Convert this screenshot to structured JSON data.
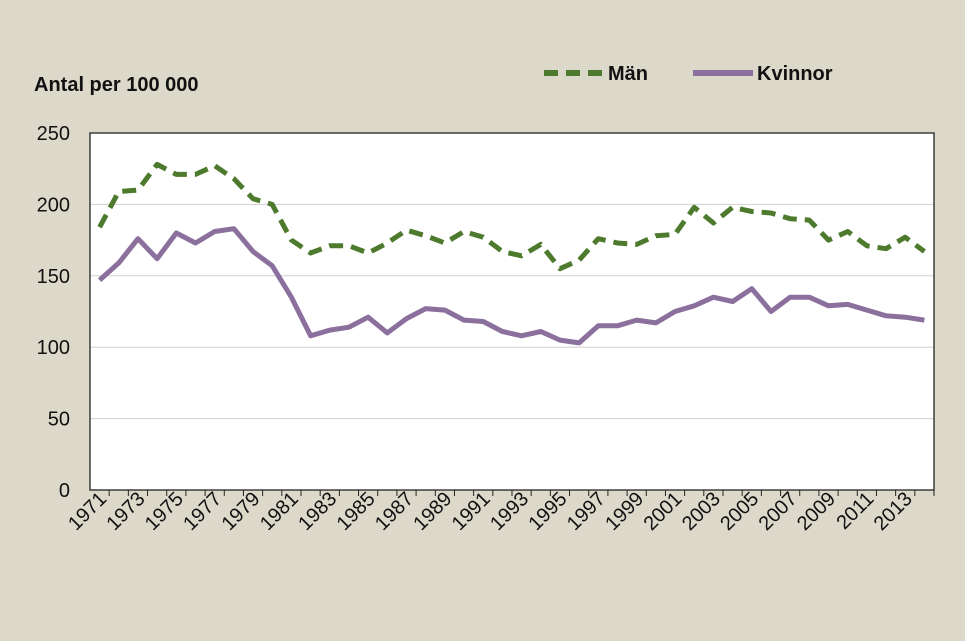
{
  "chart_data": {
    "type": "line",
    "ylabel": "Antal per 100 000",
    "xlabel": "",
    "ylim": [
      0,
      250
    ],
    "y_ticks": [
      0,
      50,
      100,
      150,
      200,
      250
    ],
    "x_tick_labels": [
      "1971",
      "1973",
      "1975",
      "1977",
      "1979",
      "1981",
      "1983",
      "1985",
      "1987",
      "1989",
      "1991",
      "1993",
      "1995",
      "1997",
      "1999",
      "2001",
      "2003",
      "2005",
      "2007",
      "2009",
      "2011",
      "2013"
    ],
    "x": [
      1971,
      1972,
      1973,
      1974,
      1975,
      1976,
      1977,
      1978,
      1979,
      1980,
      1981,
      1982,
      1983,
      1984,
      1985,
      1986,
      1987,
      1988,
      1989,
      1990,
      1991,
      1992,
      1993,
      1994,
      1995,
      1996,
      1997,
      1998,
      1999,
      2000,
      2001,
      2002,
      2003,
      2004,
      2005,
      2006,
      2007,
      2008,
      2009,
      2010,
      2011,
      2012,
      2013,
      2014
    ],
    "grid": "horizontal",
    "legend_position": "top-right",
    "series": [
      {
        "name": "Män",
        "color": "#4e7a2e",
        "style": "dashed",
        "values": [
          184,
          209,
          210,
          228,
          221,
          221,
          227,
          218,
          204,
          200,
          175,
          166,
          171,
          171,
          166,
          173,
          182,
          178,
          173,
          181,
          177,
          167,
          164,
          172,
          155,
          161,
          176,
          173,
          172,
          178,
          179,
          198,
          187,
          198,
          195,
          194,
          190,
          189,
          175,
          181,
          171,
          169,
          177,
          167
        ]
      },
      {
        "name": "Kvinnor",
        "color": "#8b6f9c",
        "style": "solid",
        "values": [
          147,
          159,
          176,
          162,
          180,
          173,
          181,
          183,
          167,
          157,
          135,
          108,
          112,
          114,
          121,
          110,
          120,
          127,
          126,
          119,
          118,
          111,
          108,
          111,
          105,
          103,
          115,
          115,
          119,
          117,
          125,
          129,
          135,
          132,
          141,
          125,
          135,
          135,
          129,
          130,
          126,
          122,
          121,
          119
        ]
      }
    ]
  }
}
